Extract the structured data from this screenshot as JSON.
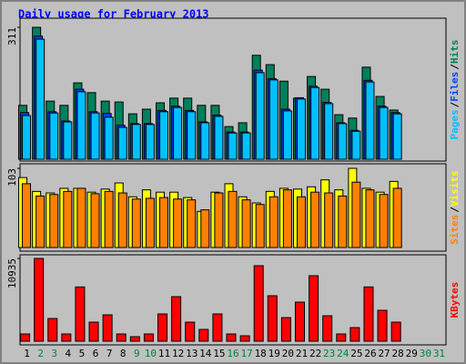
{
  "chart_data": [
    {
      "type": "bar",
      "title": "Daily usage for February 2013",
      "ylim": [
        0,
        311
      ],
      "yticks": [
        311
      ],
      "legend_separator": "/",
      "series": [
        {
          "name": "Hits",
          "color": "#00805c",
          "values": [
            127,
            311,
            137,
            127,
            180,
            157,
            137,
            135,
            107,
            118,
            133,
            144,
            144,
            127,
            127,
            77,
            86,
            245,
            223,
            184,
            144,
            195,
            165,
            105,
            97,
            217,
            148,
            116,
            0,
            0,
            0
          ]
        },
        {
          "name": "Files",
          "color": "#0040ff",
          "values": [
            110,
            290,
            112,
            90,
            165,
            112,
            108,
            80,
            84,
            84,
            115,
            125,
            115,
            88,
            104,
            64,
            64,
            210,
            190,
            118,
            145,
            172,
            134,
            86,
            68,
            186,
            125,
            110,
            0,
            0,
            0
          ]
        },
        {
          "name": "Pages",
          "color": "#00c0ff",
          "values": [
            103,
            283,
            109,
            88,
            159,
            109,
            99,
            75,
            82,
            82,
            112,
            122,
            112,
            86,
            101,
            62,
            62,
            204,
            187,
            114,
            142,
            169,
            131,
            84,
            66,
            182,
            122,
            107,
            0,
            0,
            0
          ]
        }
      ]
    },
    {
      "type": "bar",
      "ylim": [
        0,
        103
      ],
      "yticks": [
        103
      ],
      "legend_separator": "/",
      "series": [
        {
          "name": "Visits",
          "color": "#ffff00",
          "values": [
            91,
            73,
            71,
            77,
            77,
            72,
            76,
            84,
            66,
            75,
            72,
            72,
            65,
            47,
            72,
            83,
            66,
            58,
            73,
            77,
            76,
            79,
            88,
            75,
            103,
            77,
            72,
            86,
            0,
            0,
            0
          ]
        },
        {
          "name": "Sites",
          "color": "#ff8000",
          "values": [
            83,
            67,
            69,
            73,
            77,
            70,
            73,
            71,
            63,
            64,
            65,
            63,
            62,
            49,
            71,
            73,
            62,
            56,
            66,
            75,
            66,
            72,
            71,
            67,
            85,
            75,
            69,
            77,
            0,
            0,
            0
          ]
        }
      ]
    },
    {
      "type": "bar",
      "ylim": [
        0,
        10935
      ],
      "yticks": [
        10935
      ],
      "categories": [
        "1",
        "2",
        "3",
        "4",
        "5",
        "6",
        "7",
        "8",
        "9",
        "10",
        "11",
        "12",
        "13",
        "14",
        "15",
        "16",
        "17",
        "18",
        "19",
        "20",
        "21",
        "22",
        "23",
        "24",
        "25",
        "26",
        "27",
        "28",
        "29",
        "30",
        "31"
      ],
      "category_colors": [
        "#000000",
        "#008040",
        "#008040",
        "#000000",
        "#000000",
        "#000000",
        "#000000",
        "#000000",
        "#008040",
        "#008040",
        "#000000",
        "#000000",
        "#000000",
        "#000000",
        "#000000",
        "#008040",
        "#008040",
        "#000000",
        "#000000",
        "#000000",
        "#000000",
        "#000000",
        "#008040",
        "#008040",
        "#000000",
        "#000000",
        "#000000",
        "#000000",
        "#000000",
        "#008040",
        "#008040"
      ],
      "series": [
        {
          "name": "KBytes",
          "color": "#ff0000",
          "values": [
            961,
            10935,
            3004,
            961,
            7170,
            2523,
            3485,
            961,
            601,
            961,
            3605,
            5888,
            2523,
            1562,
            3605,
            961,
            721,
            9974,
            6008,
            3124,
            5167,
            8652,
            3365,
            961,
            1802,
            7170,
            4085,
            2523,
            0,
            0,
            0
          ]
        }
      ]
    }
  ]
}
